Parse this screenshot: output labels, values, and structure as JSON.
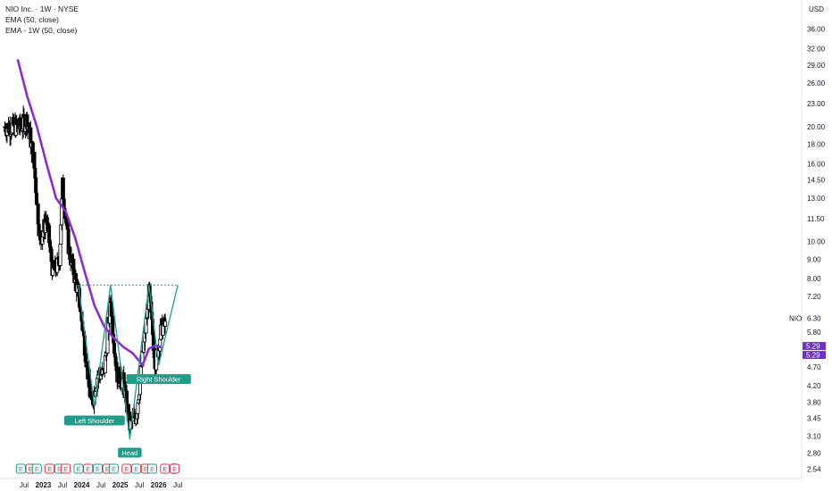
{
  "legend": {
    "title": "NIO Inc. · 1W · NYSE",
    "ema_line": "EMA (50, close)",
    "ema_mtf_line": "EMA - 1W (50, close)"
  },
  "currency": "USD",
  "symbol_label": "NIO",
  "price_label": "6.30",
  "ema_labels": [
    "5.29",
    "5.29"
  ],
  "colors": {
    "candle": "#000000",
    "ema": "#8e2bd1",
    "pattern": "#1f9d8a",
    "neckline": "#1f9d8a",
    "earnings": "#e0364b",
    "dividend": "#1f9d8a",
    "future": "#a347d6",
    "axis_text": "#131722",
    "price_tag": "#6f31c8"
  },
  "chart_data": {
    "type": "line",
    "title": "NIO Inc. · 1W · NYSE",
    "y_scale": "log",
    "ylim": [
      2.4,
      42
    ],
    "y_ticks": [
      "36.00",
      "32.00",
      "29.00",
      "26.00",
      "23.00",
      "20.00",
      "18.00",
      "16.00",
      "14.50",
      "13.00",
      "11.50",
      "10.00",
      "9.00",
      "8.00",
      "7.20",
      "6.30",
      "5.80",
      "5.29",
      "4.70",
      "4.20",
      "3.80",
      "3.45",
      "3.10",
      "2.80",
      "2.54"
    ],
    "x_ticks": [
      "Jul",
      "2023",
      "Jul",
      "2024",
      "Jul",
      "2025",
      "Jul",
      "2026",
      "Jul"
    ],
    "price_approx": {
      "x": [
        "2022-06",
        "2022-08",
        "2022-10",
        "2022-12",
        "2023-02",
        "2023-04",
        "2023-06",
        "2023-07",
        "2023-09",
        "2023-12",
        "2024-02",
        "2024-04",
        "2024-06",
        "2024-08",
        "2024-10",
        "2024-12",
        "2025-02",
        "2025-04",
        "2025-06",
        "2025-08",
        "2025-10",
        "2025-12",
        "2026-02"
      ],
      "close": [
        20.0,
        21.0,
        16.5,
        10.0,
        11.5,
        8.3,
        8.8,
        14.0,
        9.5,
        7.3,
        5.3,
        3.7,
        4.5,
        4.5,
        7.0,
        4.5,
        4.3,
        3.3,
        3.5,
        5.0,
        7.3,
        4.8,
        6.0
      ]
    },
    "series": [
      {
        "name": "EMA (50, close)",
        "x": [
          "2022-05",
          "2022-08",
          "2022-11",
          "2023-02",
          "2023-05",
          "2023-08",
          "2023-11",
          "2024-02",
          "2024-05",
          "2024-08",
          "2024-11",
          "2025-02",
          "2025-05",
          "2025-08",
          "2025-10",
          "2025-12",
          "2026-02"
        ],
        "values": [
          30.0,
          24.0,
          20.0,
          16.0,
          13.0,
          12.0,
          10.2,
          8.3,
          6.8,
          6.0,
          5.6,
          5.3,
          5.1,
          4.75,
          5.25,
          5.35,
          5.29
        ]
      }
    ],
    "annotations": [
      "Left Shoulder",
      "Head",
      "Right Shoulder"
    ],
    "pattern_points": [
      {
        "x": "2023-12",
        "y": 7.7
      },
      {
        "x": "2024-05",
        "y": 3.7
      },
      {
        "x": "2024-10",
        "y": 7.7
      },
      {
        "x": "2025-04",
        "y": 3.05
      },
      {
        "x": "2025-10",
        "y": 7.7
      },
      {
        "x": "2026-01",
        "y": 4.75
      },
      {
        "x": "2026-07",
        "y": 7.7
      }
    ],
    "neckline": 7.7,
    "events": [
      {
        "x": "2022-06",
        "type": "E"
      },
      {
        "x": "2022-09",
        "type": "E"
      },
      {
        "x": "2022-11",
        "type": "E"
      },
      {
        "x": "2023-03",
        "type": "E"
      },
      {
        "x": "2023-06",
        "type": "E"
      },
      {
        "x": "2023-08",
        "type": "E"
      },
      {
        "x": "2023-12",
        "type": "E"
      },
      {
        "x": "2024-03",
        "type": "E"
      },
      {
        "x": "2024-06",
        "type": "E"
      },
      {
        "x": "2024-09",
        "type": "E"
      },
      {
        "x": "2024-11",
        "type": "E"
      },
      {
        "x": "2025-03",
        "type": "E"
      },
      {
        "x": "2025-06",
        "type": "E"
      },
      {
        "x": "2025-09",
        "type": "E"
      },
      {
        "x": "2025-11",
        "type": "E"
      },
      {
        "x": "2026-03",
        "type": "E"
      },
      {
        "x": "2026-03",
        "type": "split"
      },
      {
        "x": "2026-06",
        "type": "E"
      }
    ],
    "grid": false
  }
}
